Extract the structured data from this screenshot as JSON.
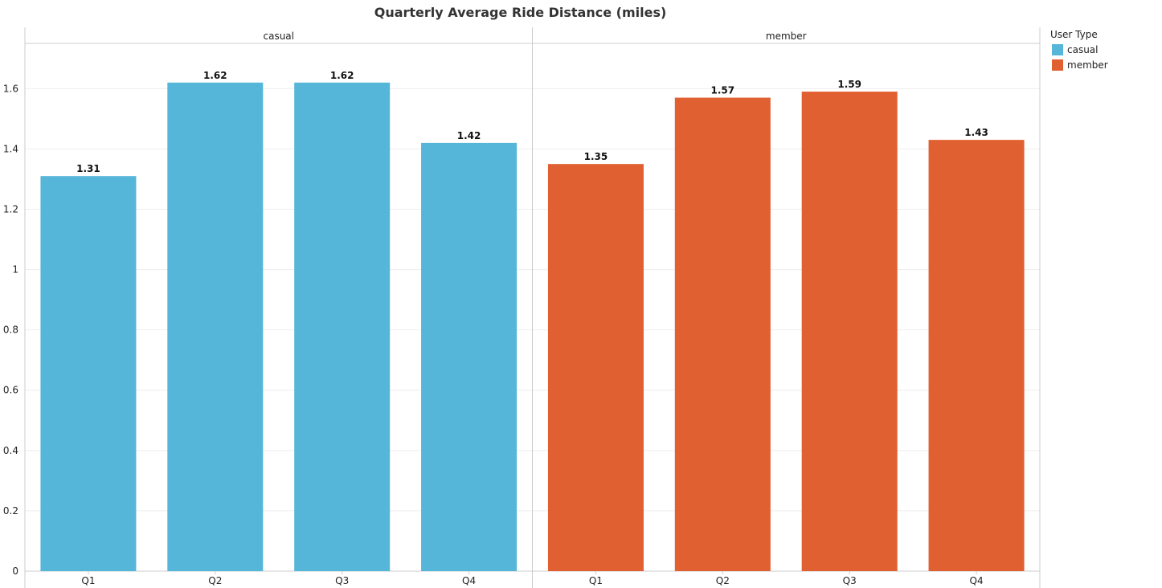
{
  "chart_data": {
    "type": "bar",
    "title": "Quarterly Average Ride Distance (miles)",
    "xlabel": "",
    "ylabel": "",
    "ylim": [
      0,
      1.75
    ],
    "yticks": [
      0,
      0.2,
      0.4,
      0.6,
      0.8,
      1,
      1.2,
      1.4,
      1.6
    ],
    "ytick_labels": [
      "0",
      "0.2",
      "0.4",
      "0.6",
      "0.8",
      "1",
      "1.2",
      "1.4",
      "1.6"
    ],
    "grid": true,
    "legend": {
      "title": "User Type",
      "position": "right"
    },
    "categories": [
      "Q1",
      "Q2",
      "Q3",
      "Q4"
    ],
    "facets": [
      {
        "label": "casual",
        "series_name": "casual",
        "color": "#55b6d9",
        "values": [
          1.31,
          1.62,
          1.62,
          1.42
        ],
        "value_labels": [
          "1.31",
          "1.62",
          "1.62",
          "1.42"
        ]
      },
      {
        "label": "member",
        "series_name": "member",
        "color": "#e06031",
        "values": [
          1.35,
          1.57,
          1.59,
          1.43
        ],
        "value_labels": [
          "1.35",
          "1.57",
          "1.59",
          "1.43"
        ]
      }
    ]
  }
}
